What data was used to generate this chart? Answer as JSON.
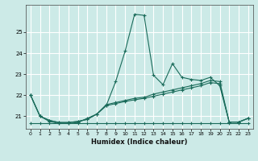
{
  "xlabel": "Humidex (Indice chaleur)",
  "xlim": [
    -0.5,
    23.5
  ],
  "ylim": [
    20.4,
    26.3
  ],
  "yticks": [
    21,
    22,
    23,
    24,
    25
  ],
  "xticks": [
    0,
    1,
    2,
    3,
    4,
    5,
    6,
    7,
    8,
    9,
    10,
    11,
    12,
    13,
    14,
    15,
    16,
    17,
    18,
    19,
    20,
    21,
    22,
    23
  ],
  "bg_color": "#cceae7",
  "grid_color": "#ffffff",
  "line_color": "#1a6b5a",
  "series": [
    [
      22.0,
      21.0,
      20.75,
      20.65,
      20.65,
      20.7,
      20.9,
      21.1,
      21.5,
      22.65,
      24.1,
      25.85,
      25.8,
      22.95,
      22.5,
      23.5,
      22.85,
      22.75,
      22.7,
      22.85,
      22.45,
      20.72,
      20.72,
      20.9
    ],
    [
      22.0,
      21.0,
      20.8,
      20.7,
      20.7,
      20.75,
      20.85,
      21.1,
      21.55,
      21.65,
      21.75,
      21.85,
      21.9,
      22.05,
      22.15,
      22.25,
      22.35,
      22.45,
      22.55,
      22.7,
      22.65,
      20.72,
      20.72,
      20.9
    ],
    [
      22.0,
      21.0,
      20.8,
      20.7,
      20.7,
      20.75,
      20.85,
      21.1,
      21.5,
      21.6,
      21.7,
      21.78,
      21.85,
      21.95,
      22.05,
      22.15,
      22.25,
      22.35,
      22.45,
      22.6,
      22.55,
      20.72,
      20.72,
      20.9
    ],
    [
      20.65,
      20.65,
      20.65,
      20.65,
      20.65,
      20.65,
      20.65,
      20.65,
      20.65,
      20.65,
      20.65,
      20.65,
      20.65,
      20.65,
      20.65,
      20.65,
      20.65,
      20.65,
      20.65,
      20.65,
      20.65,
      20.65,
      20.65,
      20.65
    ]
  ]
}
